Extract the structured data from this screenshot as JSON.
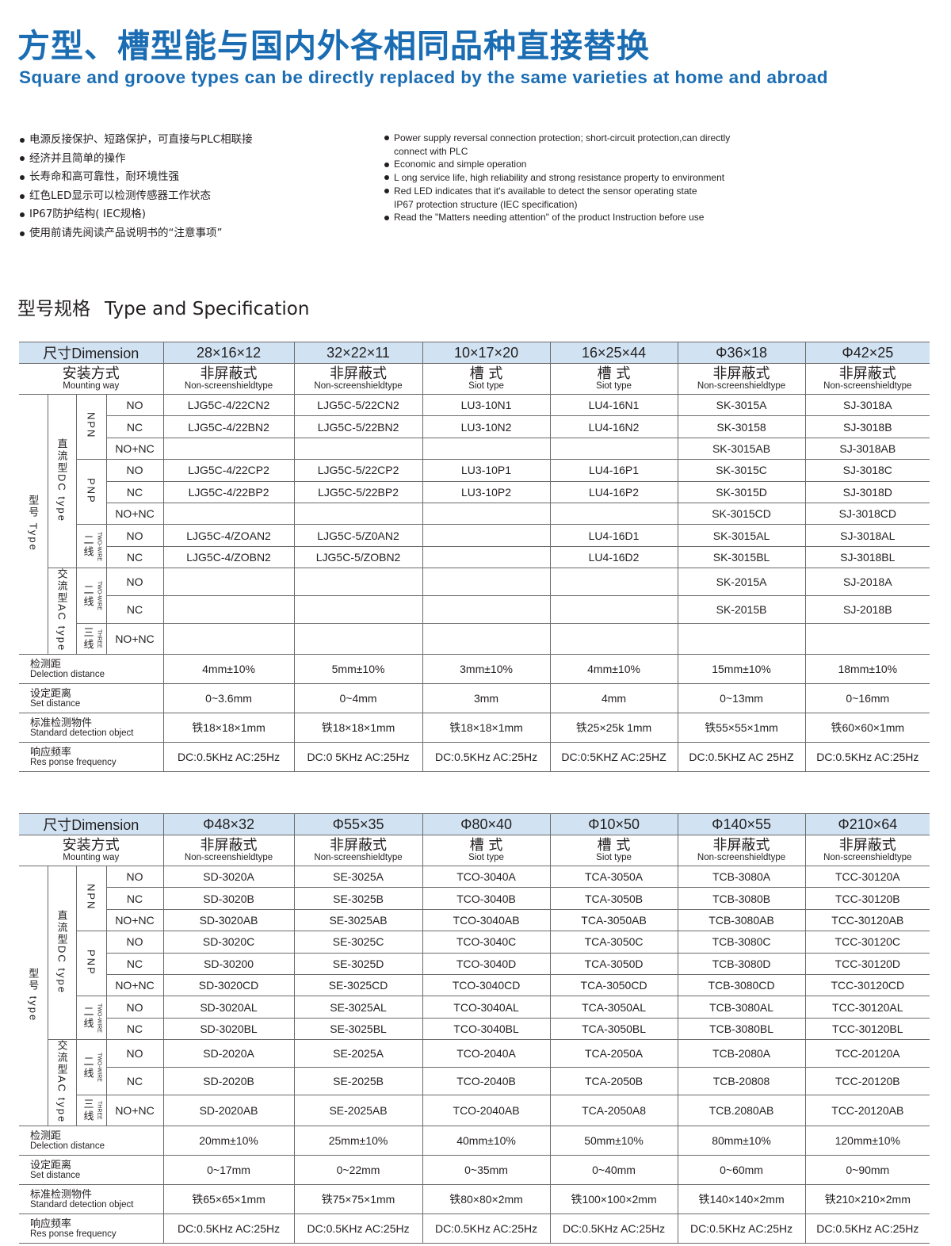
{
  "header": {
    "title_cn": "方型、槽型能与国内外各相同品种直接替换",
    "title_en": "Square and groove types can be directly replaced by the same varieties at home and abroad"
  },
  "features_cn": [
    "电源反接保护、短路保护，可直接与PLC相联接",
    "经济并且简单的操作",
    "长寿命和高可靠性，耐环境性强",
    "红色LED显示可以检测传感器工作状态",
    "IP67防护结构( IEC规格)",
    "使用前请先阅读产品说明书的“注意事项”"
  ],
  "features_en": [
    {
      "text": "Power supply reversal connection protection; short-circuit protection,can directly",
      "bullet": true
    },
    {
      "text": "connect with PLC",
      "bullet": false
    },
    {
      "text": "Economic and simple operation",
      "bullet": true
    },
    {
      "text": "L ong service life, high reliability and strong resistance property to environment",
      "bullet": true
    },
    {
      "text": "Red LED indicates that it's available to detect the sensor operating state",
      "bullet": true
    },
    {
      "text": "IP67 protection structure (IEC specification)",
      "bullet": false
    },
    {
      "text": "Read the \"Matters needing attention\" of the product Instruction before use",
      "bullet": true
    }
  ],
  "section": {
    "title_cn": "型号规格",
    "title_en": "Type and Specification"
  },
  "colors": {
    "title": "#1b6db3",
    "header_band": "#d1e3f3"
  },
  "tables": [
    {
      "dimension_label": "尺寸Dimension",
      "mounting_label": {
        "cn": "安装方式",
        "en": "Mounting way"
      },
      "type_label": "型号 Type",
      "dc_label": "直流型DC type",
      "ac_label": "交流型AC type",
      "groups": {
        "npn": "NPN",
        "pnp": "PNP",
        "two_wire_cn": "二线",
        "two_wire_en": "TWO-WIRE",
        "three_wire_cn": "三线",
        "three_wire_en": "THREE"
      },
      "outputs": [
        "NO",
        "NC",
        "NO+NC",
        "NO",
        "NC",
        "NO+NC",
        "NO",
        "NC",
        "NO",
        "NC",
        "NO+NC"
      ],
      "dimensions": [
        "28×16×12",
        "32×22×11",
        "10×17×20",
        "16×25×44",
        "Φ36×18",
        "Φ42×25"
      ],
      "mounting": [
        {
          "cn": "非屏蔽式",
          "en": "Non-screenshieldtype"
        },
        {
          "cn": "非屏蔽式",
          "en": "Non-screenshieldtype"
        },
        {
          "cn": "槽 式",
          "en": "Siot type"
        },
        {
          "cn": "槽 式",
          "en": "Siot type"
        },
        {
          "cn": "非屏蔽式",
          "en": "Non-screenshieldtype"
        },
        {
          "cn": "非屏蔽式",
          "en": "Non-screenshieldtype"
        }
      ],
      "models": [
        [
          "LJG5C-4/22CN2",
          "LJG5C-5/22CN2",
          "LU3-10N1",
          "LU4-16N1",
          "SK-3015A",
          "SJ-3018A"
        ],
        [
          "LJG5C-4/22BN2",
          "LJG5C-5/22BN2",
          "LU3-10N2",
          "LU4-16N2",
          "SK-30158",
          "SJ-3018B"
        ],
        [
          "",
          "",
          "",
          "",
          "SK-3015AB",
          "SJ-3018AB"
        ],
        [
          "LJG5C-4/22CP2",
          "LJG5C-5/22CP2",
          "LU3-10P1",
          "LU4-16P1",
          "SK-3015C",
          "SJ-3018C"
        ],
        [
          "LJG5C-4/22BP2",
          "LJG5C-5/22BP2",
          "LU3-10P2",
          "LU4-16P2",
          "SK-3015D",
          "SJ-3018D"
        ],
        [
          "",
          "",
          "",
          "",
          "SK-3015CD",
          "SJ-3018CD"
        ],
        [
          "LJG5C-4/ZOAN2",
          "LJG5C-5/Z0AN2",
          "",
          "LU4-16D1",
          "SK-3015AL",
          "SJ-3018AL"
        ],
        [
          "LJG5C-4/ZOBN2",
          "LJG5C-5/ZOBN2",
          "",
          "LU4-16D2",
          "SK-3015BL",
          "SJ-3018BL"
        ],
        [
          "",
          "",
          "",
          "",
          "SK-2015A",
          "SJ-2018A"
        ],
        [
          "",
          "",
          "",
          "",
          "SK-2015B",
          "SJ-2018B"
        ],
        [
          "",
          "",
          "",
          "",
          "",
          ""
        ]
      ],
      "specs": [
        {
          "cn": "检测距",
          "en": "Delection distance",
          "values": [
            "4mm±10%",
            "5mm±10%",
            "3mm±10%",
            "4mm±10%",
            "15mm±10%",
            "18mm±10%"
          ]
        },
        {
          "cn": "设定距离",
          "en": "Set distance",
          "values": [
            "0~3.6mm",
            "0~4mm",
            "3mm",
            "4mm",
            "0~13mm",
            "0~16mm"
          ]
        },
        {
          "cn": "标准检测物件",
          "en": "Standard detection object",
          "values": [
            "铁18×18×1mm",
            "铁18×18×1mm",
            "铁18×18×1mm",
            "铁25×25k 1mm",
            "铁55×55×1mm",
            "铁60×60×1mm"
          ]
        },
        {
          "cn": "响应频率",
          "en": "Res ponse frequency",
          "values": [
            "DC:0.5KHz AC:25Hz",
            "DC:0 5KHz AC:25Hz",
            "DC:0.5KHz AC:25Hz",
            "DC:0:5KHZ AC:25HZ",
            "DC:0.5KHZ AC 25HZ",
            "DC:0.5KHz AC:25Hz"
          ]
        }
      ]
    },
    {
      "dimension_label": "尺寸Dimension",
      "mounting_label": {
        "cn": "安装方式",
        "en": "Mounting way"
      },
      "type_label": "型号 type",
      "dc_label": "直流型DC type",
      "ac_label": "交流型AC type",
      "groups": {
        "npn": "NPN",
        "pnp": "PNP",
        "two_wire_cn": "二线",
        "two_wire_en": "TWO-WIRE",
        "three_wire_cn": "三线",
        "three_wire_en": "THREE"
      },
      "outputs": [
        "NO",
        "NC",
        "NO+NC",
        "NO",
        "NC",
        "NO+NC",
        "NO",
        "NC",
        "NO",
        "NC",
        "NO+NC"
      ],
      "dimensions": [
        "Φ48×32",
        "Φ55×35",
        "Φ80×40",
        "Φ10×50",
        "Φ140×55",
        "Φ210×64"
      ],
      "mounting": [
        {
          "cn": "非屏蔽式",
          "en": "Non-screenshieldtype"
        },
        {
          "cn": "非屏蔽式",
          "en": "Non-screenshieldtype"
        },
        {
          "cn": "槽 式",
          "en": "Siot type"
        },
        {
          "cn": "槽 式",
          "en": "Siot type"
        },
        {
          "cn": "非屏蔽式",
          "en": "Non-screenshieldtype"
        },
        {
          "cn": "非屏蔽式",
          "en": "Non-screenshieldtype"
        }
      ],
      "models": [
        [
          "SD-3020A",
          "SE-3025A",
          "TCO-3040A",
          "TCA-3050A",
          "TCB-3080A",
          "TCC-30120A"
        ],
        [
          "SD-3020B",
          "SE-3025B",
          "TCO-3040B",
          "TCA-3050B",
          "TCB-3080B",
          "TCC-30120B"
        ],
        [
          "SD-3020AB",
          "SE-3025AB",
          "TCO-3040AB",
          "TCA-3050AB",
          "TCB-3080AB",
          "TCC-30120AB"
        ],
        [
          "SD-3020C",
          "SE-3025C",
          "TCO-3040C",
          "TCA-3050C",
          "TCB-3080C",
          "TCC-30120C"
        ],
        [
          "SD-30200",
          "SE-3025D",
          "TCO-3040D",
          "TCA-3050D",
          "TCB-3080D",
          "TCC-30120D"
        ],
        [
          "SD-3020CD",
          "SE-3025CD",
          "TCO-3040CD",
          "TCA-3050CD",
          "TCB-3080CD",
          "TCC-30120CD"
        ],
        [
          "SD-3020AL",
          "SE-3025AL",
          "TCO-3040AL",
          "TCA-3050AL",
          "TCB-3080AL",
          "TCC-30120AL"
        ],
        [
          "SD-3020BL",
          "SE-3025BL",
          "TCO-3040BL",
          "TCA-3050BL",
          "TCB-3080BL",
          "TCC-30120BL"
        ],
        [
          "SD-2020A",
          "SE-2025A",
          "TCO-2040A",
          "TCA-2050A",
          "TCB-2080A",
          "TCC-20120A"
        ],
        [
          "SD-2020B",
          "SE-2025B",
          "TCO-2040B",
          "TCA-2050B",
          "TCB-20808",
          "TCC-20120B"
        ],
        [
          "SD-2020AB",
          "SE-2025AB",
          "TCO-2040AB",
          "TCA-2050A8",
          "TCB.2080AB",
          "TCC-20120AB"
        ]
      ],
      "specs": [
        {
          "cn": "检测距",
          "en": "Delection distance",
          "values": [
            "20mm±10%",
            "25mm±10%",
            "40mm±10%",
            "50mm±10%",
            "80mm±10%",
            "120mm±10%"
          ]
        },
        {
          "cn": "设定距离",
          "en": "Set distance",
          "values": [
            "0~17mm",
            "0~22mm",
            "0~35mm",
            "0~40mm",
            "0~60mm",
            "0~90mm"
          ]
        },
        {
          "cn": "标准检测物件",
          "en": "Standard detection object",
          "values": [
            "铁65×65×1mm",
            "铁75×75×1mm",
            "铁80×80×2mm",
            "铁100×100×2mm",
            "铁140×140×2mm",
            "铁210×210×2mm"
          ]
        },
        {
          "cn": "响应频率",
          "en": "Res ponse frequency",
          "values": [
            "DC:0.5KHz AC:25Hz",
            "DC:0.5KHz AC:25Hz",
            "DC:0.5KHz AC:25Hz",
            "DC:0.5KHz AC:25Hz",
            "DC:0.5KHz AC:25Hz",
            "DC:0.5KHz AC:25Hz"
          ]
        }
      ]
    }
  ]
}
